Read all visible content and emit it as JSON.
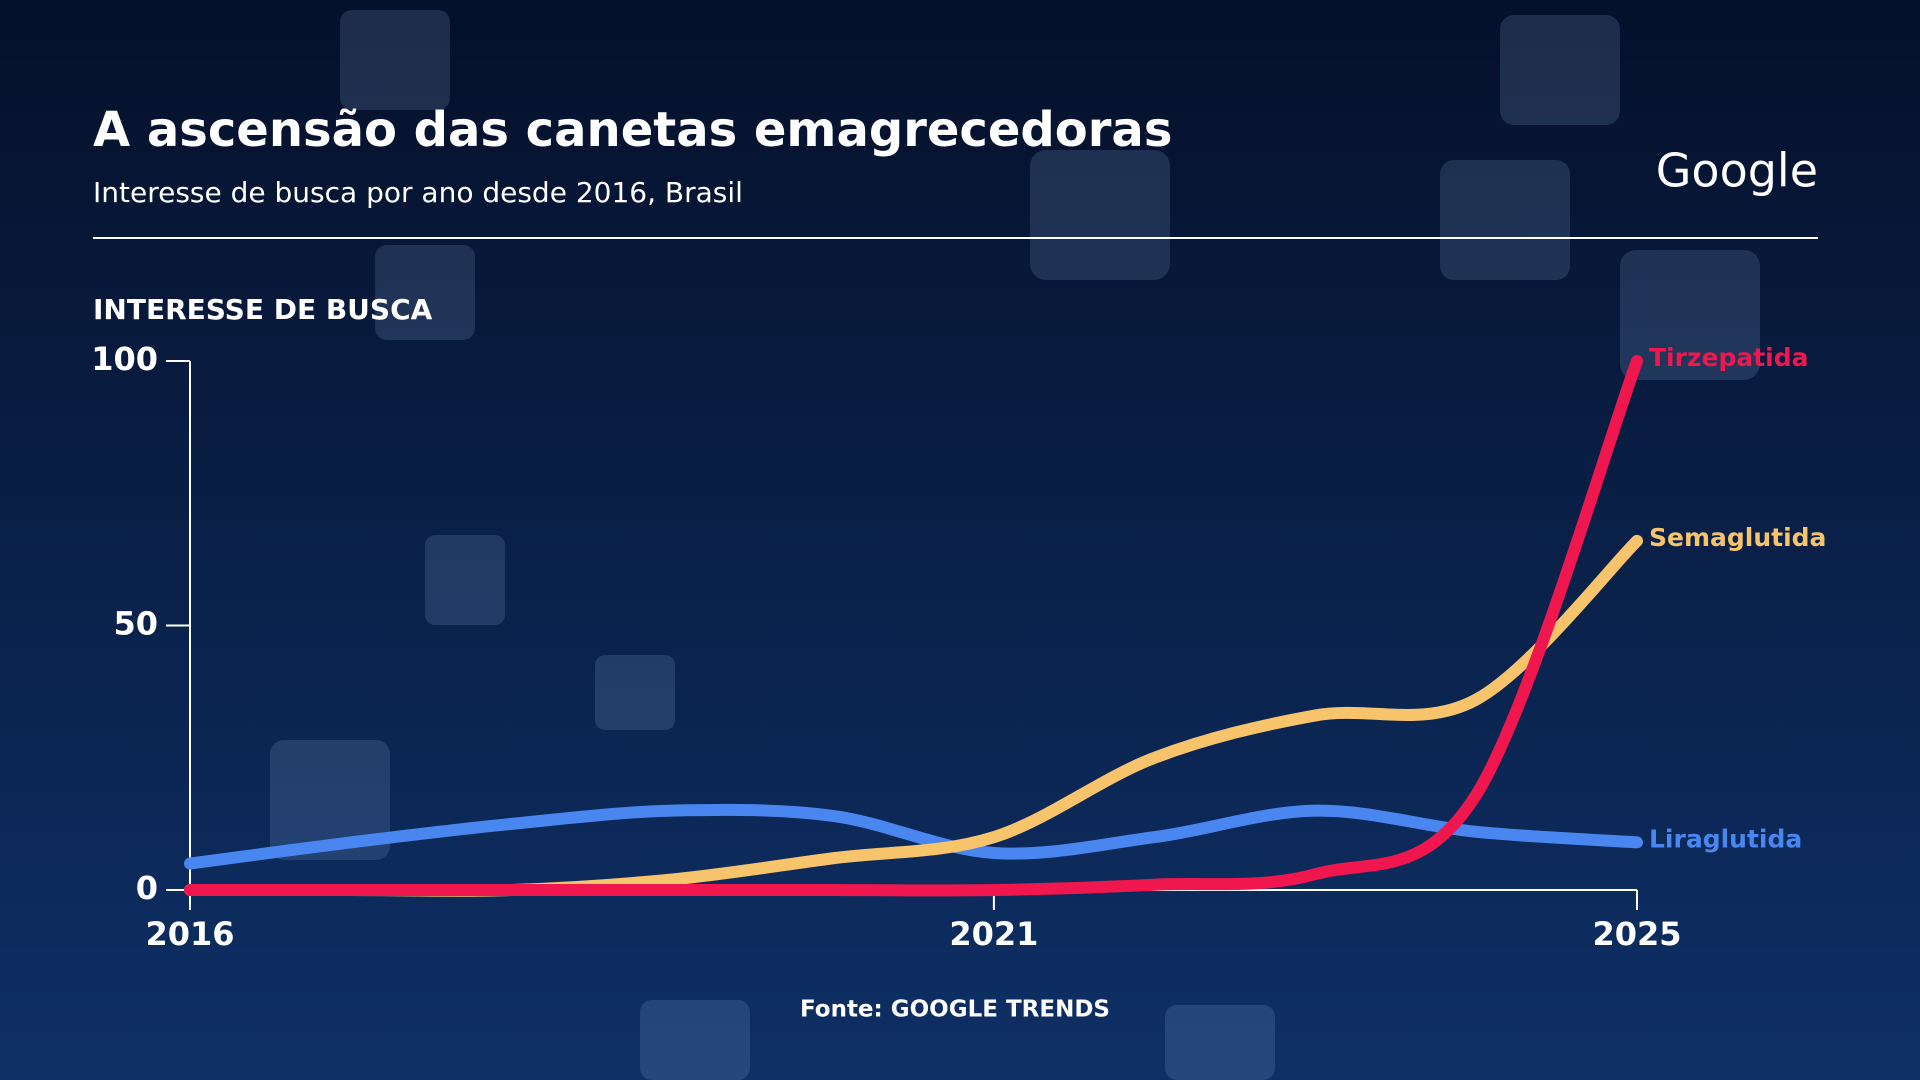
{
  "chart_data": {
    "type": "line",
    "title": "A ascensão das canetas emagrecedoras",
    "subtitle": "Interesse de busca por ano desde 2016, Brasil",
    "brand": "Google",
    "y_label": "INTERESSE DE BUSCA",
    "source": "Fonte: GOOGLE TRENDS",
    "x": [
      2016,
      2017,
      2018,
      2019,
      2020,
      2021,
      2022,
      2023,
      2024,
      2025
    ],
    "xlim": [
      2016,
      2025
    ],
    "xticks": [
      2016,
      2021,
      2025
    ],
    "ylim": [
      0,
      100
    ],
    "yticks": [
      0,
      50,
      100
    ],
    "series": [
      {
        "name": "Liraglutida",
        "color": "#4a86f0",
        "values": [
          5,
          9,
          12.5,
          15,
          14,
          7,
          10,
          15,
          11,
          9
        ]
      },
      {
        "name": "Semaglutida",
        "color": "#f7c46c",
        "values": [
          0,
          0,
          0,
          2,
          6,
          10,
          25,
          33,
          36,
          66
        ]
      },
      {
        "name": "Tirzepatida",
        "color": "#f0174f",
        "values": [
          0,
          0,
          0,
          0,
          0,
          0,
          1,
          3,
          18,
          100
        ]
      }
    ]
  }
}
